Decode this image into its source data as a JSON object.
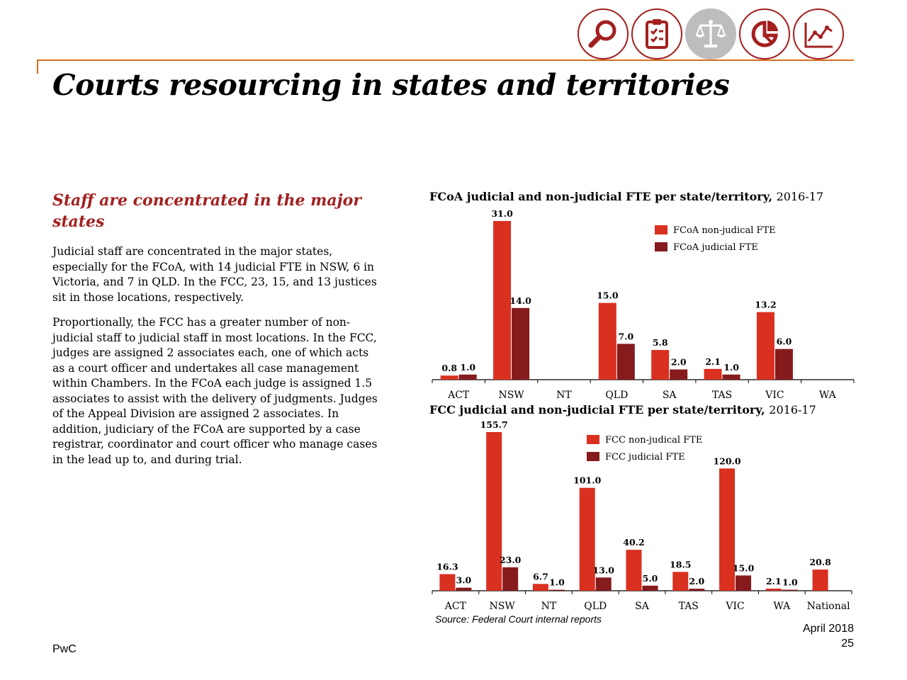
{
  "header": {
    "icons": [
      "magnifier-icon",
      "clipboard-checklist-icon",
      "scales-of-justice-icon",
      "pie-chart-icon",
      "line-graph-icon"
    ],
    "active_icon": "scales-of-justice-icon",
    "title": "Courts resourcing in states and territories"
  },
  "left": {
    "subheading": "Staff are concentrated in the major states",
    "paragraphs": [
      "Judicial staff are concentrated in the major states, especially for the FCoA, with 14 judicial FTE in NSW, 6 in Victoria, and 7 in QLD. In the FCC, 23, 15, and 13 justices sit in those locations, respectively.",
      "Proportionally, the FCC has a greater number of non-judicial staff to judicial staff in most locations. In the FCC, judges are assigned 2 associates each, one of which acts as a court officer and undertakes all case management within Chambers. In the FCoA each judge is assigned 1.5 associates to assist with the delivery of judgments. Judges of the Appeal Division are assigned 2 associates. In addition, judiciary of the FCoA are supported by a case registrar, coordinator and court officer who manage cases in the lead up to, and during trial."
    ]
  },
  "colors": {
    "non_judicial": "#d93020",
    "judicial": "#861b1d",
    "accent": "#a32020",
    "rule": "#d86e1c"
  },
  "chart_data": [
    {
      "type": "bar",
      "title_bold": "FCoA judicial and non-judicial FTE per state/territory,",
      "title_year": "2016-17",
      "categories": [
        "ACT",
        "NSW",
        "NT",
        "QLD",
        "SA",
        "TAS",
        "VIC",
        "WA"
      ],
      "series": [
        {
          "name": "FCoA non-judical FTE",
          "values": [
            0.8,
            31.0,
            null,
            15.0,
            5.8,
            2.1,
            13.2,
            null
          ]
        },
        {
          "name": "FCoA judicial FTE",
          "values": [
            1.0,
            14.0,
            null,
            7.0,
            2.0,
            1.0,
            6.0,
            null
          ]
        }
      ],
      "ylim": [
        0,
        31.0
      ],
      "legend": "top-right",
      "grid": false
    },
    {
      "type": "bar",
      "title_bold": "FCC judicial and non-judicial FTE per state/territory,",
      "title_year": "2016-17",
      "categories": [
        "ACT",
        "NSW",
        "NT",
        "QLD",
        "SA",
        "TAS",
        "VIC",
        "WA",
        "National"
      ],
      "series": [
        {
          "name": "FCC non-judical FTE",
          "values": [
            16.3,
            155.7,
            6.7,
            101.0,
            40.2,
            18.5,
            120.0,
            2.1,
            20.8
          ]
        },
        {
          "name": "FCC judicial FTE",
          "values": [
            3.0,
            23.0,
            1.0,
            13.0,
            5.0,
            2.0,
            15.0,
            1.0,
            null
          ]
        }
      ],
      "ylim": [
        0,
        155.7
      ],
      "legend": "top-center",
      "grid": false
    }
  ],
  "footer": {
    "source": "Source: Federal Court internal reports",
    "date": "April 2018",
    "page": "25",
    "brand": "PwC"
  }
}
